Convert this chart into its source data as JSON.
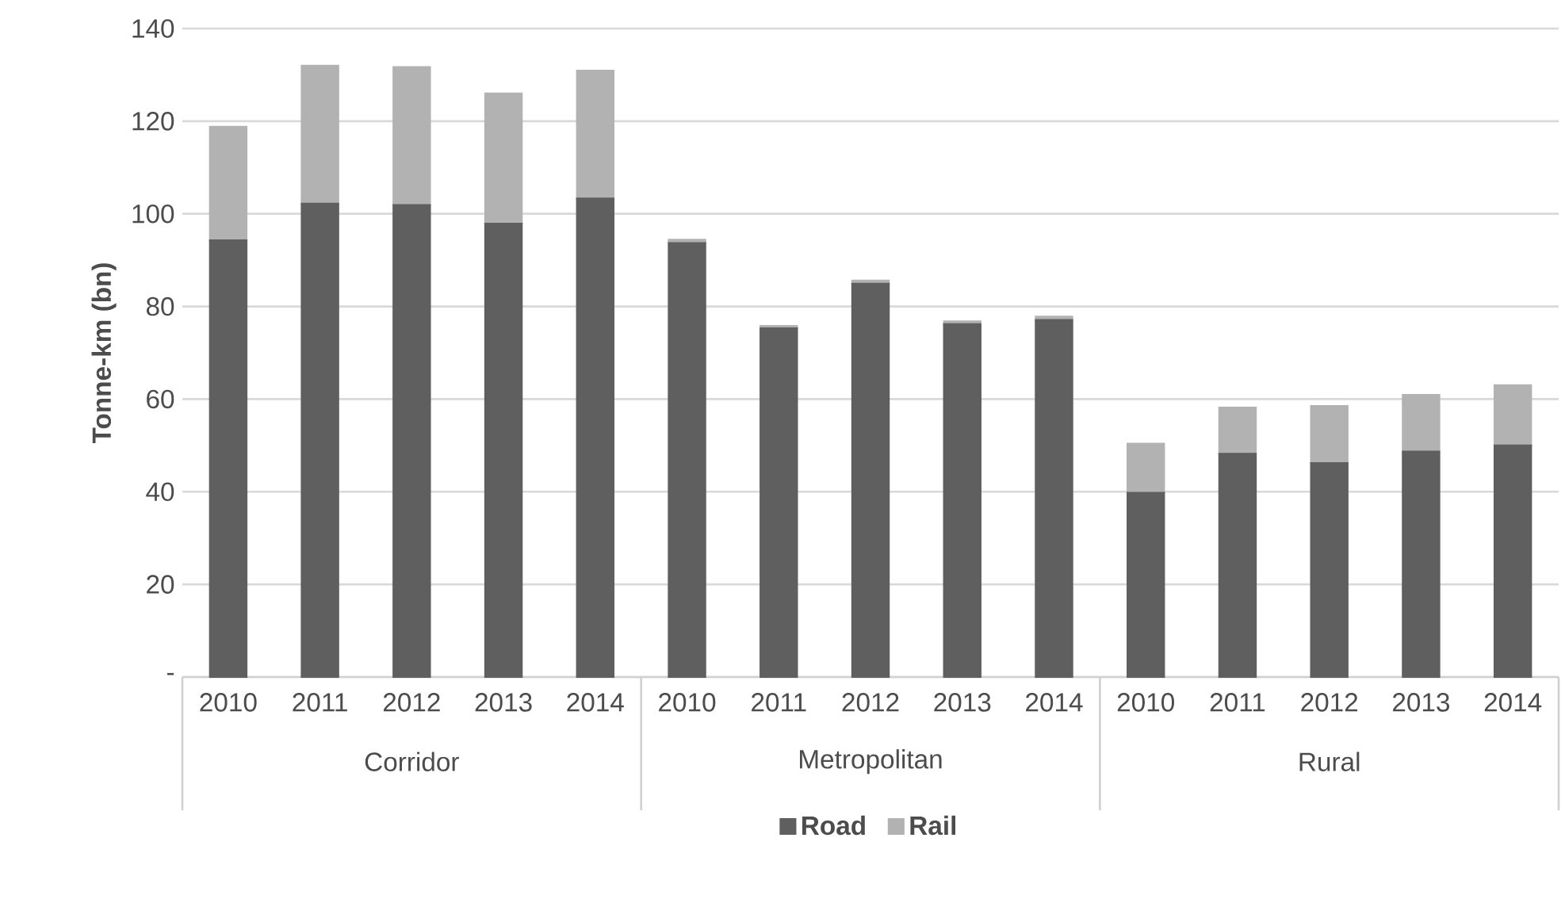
{
  "chart_data": {
    "type": "bar",
    "stacked": true,
    "ylabel": "Tonne-km (bn)",
    "categories": [
      "2010",
      "2011",
      "2012",
      "2013",
      "2014",
      "2010",
      "2011",
      "2012",
      "2013",
      "2014",
      "2010",
      "2011",
      "2012",
      "2013",
      "2014"
    ],
    "annotations": [
      "Corridor",
      "Metropolitan",
      "Rural"
    ],
    "series": [
      {
        "name": "Road",
        "color": "#5f5f5f",
        "values": [
          94.3,
          102.2,
          101.9,
          97.9,
          103.3,
          93.7,
          75.3,
          84.9,
          76.2,
          77.1,
          39.8,
          48.2,
          46.2,
          48.7,
          50.0
        ]
      },
      {
        "name": "Rail",
        "color": "#b2b2b2",
        "values": [
          24.5,
          29.8,
          29.8,
          28.1,
          27.6,
          0.7,
          0.5,
          0.7,
          0.6,
          0.7,
          10.6,
          10.0,
          12.3,
          12.2,
          13.0
        ]
      }
    ],
    "ylim": [
      0,
      140
    ],
    "yticks": [
      {
        "value": 0,
        "label": "-"
      },
      20,
      40,
      60,
      80,
      100,
      120,
      140
    ],
    "grid": "y",
    "legend": "bottom"
  }
}
